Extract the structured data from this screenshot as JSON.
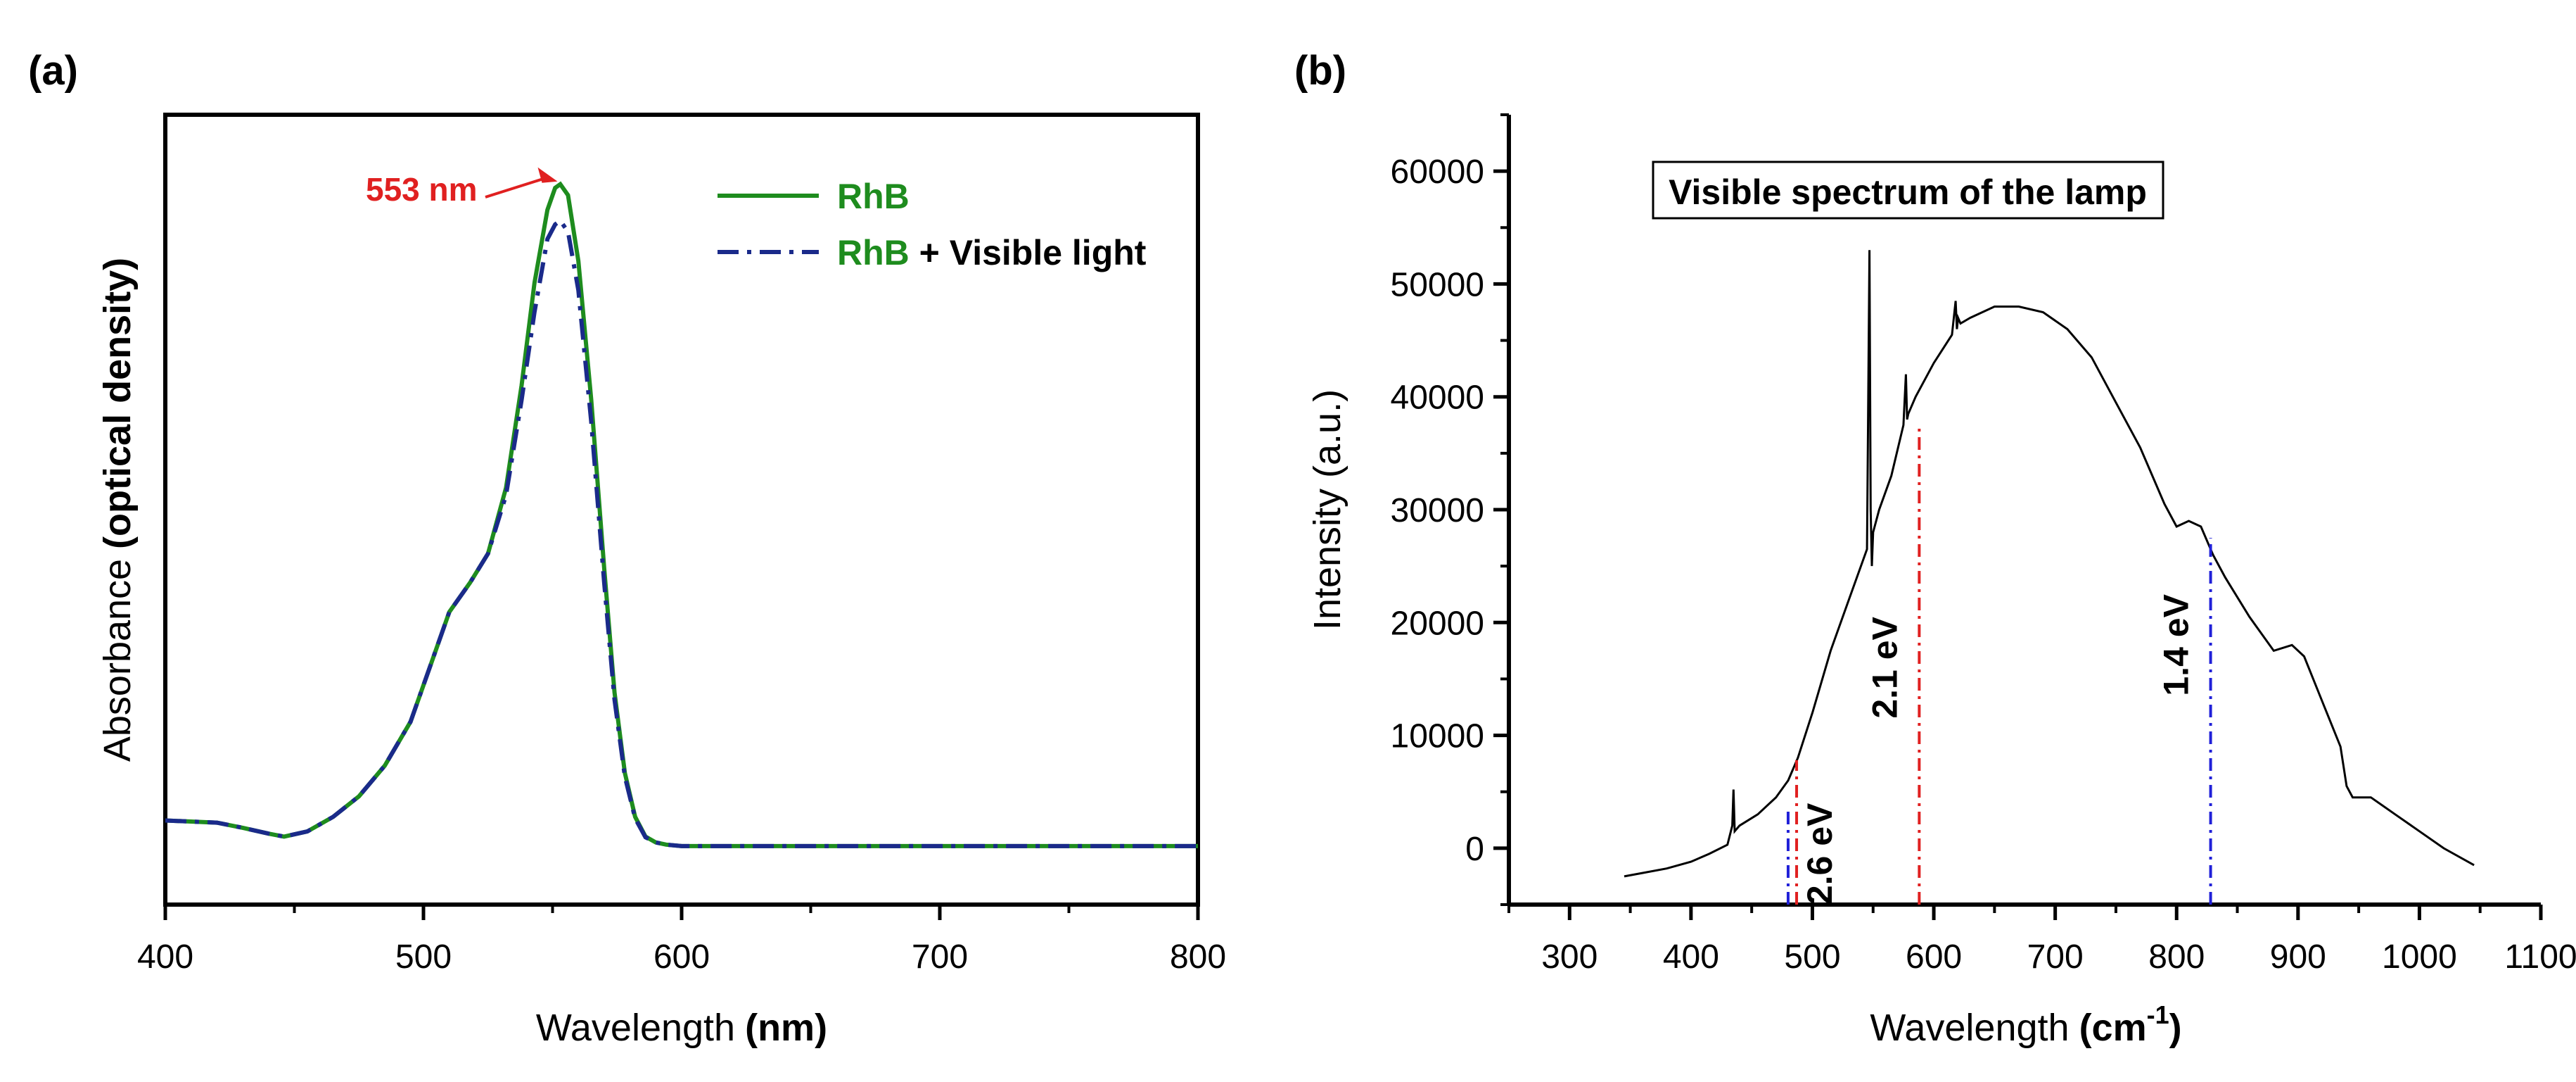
{
  "colors": {
    "green": "#1e8c1e",
    "navy": "#1a2a8a",
    "red": "#e02020",
    "blue": "#2020d8",
    "black": "#000000"
  },
  "chart_data": [
    {
      "type": "line",
      "panel_label": "(a)",
      "title": "",
      "xlabel": "Wavelength",
      "xlabel_bold": "(nm)",
      "ylabel": "Absorbance",
      "ylabel_bold": "(optical density)",
      "xlim": [
        400,
        800
      ],
      "ylim": [
        -0.08,
        1.0
      ],
      "xticks": [
        400,
        500,
        600,
        700,
        800
      ],
      "yticks_labeled": false,
      "legend_position": "top-right",
      "annotation": {
        "text": "553 nm",
        "x": 553,
        "y": 0.905
      },
      "series": [
        {
          "name": "RhB",
          "legend_label_bold": "RhB",
          "legend_label_rest": "",
          "style": "solid",
          "x": [
            400,
            420,
            430,
            440,
            446,
            455,
            465,
            475,
            485,
            495,
            503,
            510,
            518,
            525,
            532,
            538,
            543,
            548,
            551,
            553,
            556,
            560,
            565,
            570,
            574,
            578,
            582,
            586,
            590,
            594,
            600,
            610,
            630,
            650,
            700,
            750,
            800
          ],
          "y": [
            0.035,
            0.032,
            0.025,
            0.017,
            0.013,
            0.02,
            0.04,
            0.068,
            0.11,
            0.17,
            0.25,
            0.32,
            0.36,
            0.4,
            0.49,
            0.63,
            0.77,
            0.87,
            0.9,
            0.905,
            0.89,
            0.8,
            0.61,
            0.38,
            0.21,
            0.1,
            0.04,
            0.013,
            0.005,
            0.002,
            0.0,
            0.0,
            0.0,
            0.0,
            0.0,
            0.0,
            0.0
          ]
        },
        {
          "name": "RhB + Visible light",
          "legend_label_bold": "RhB",
          "legend_label_rest": " + Visible light",
          "style": "dash-dot",
          "x": [
            400,
            420,
            430,
            440,
            446,
            455,
            465,
            475,
            485,
            495,
            503,
            510,
            518,
            525,
            532,
            538,
            543,
            548,
            551,
            553,
            556,
            560,
            565,
            570,
            574,
            578,
            582,
            586,
            590,
            594,
            600,
            610,
            630,
            650,
            700,
            750,
            800
          ],
          "y": [
            0.035,
            0.032,
            0.025,
            0.017,
            0.013,
            0.02,
            0.04,
            0.068,
            0.11,
            0.17,
            0.25,
            0.32,
            0.36,
            0.4,
            0.48,
            0.61,
            0.73,
            0.83,
            0.85,
            0.855,
            0.84,
            0.76,
            0.58,
            0.36,
            0.2,
            0.095,
            0.038,
            0.012,
            0.005,
            0.002,
            0.0,
            0.0,
            0.0,
            0.0,
            0.0,
            0.0,
            0.0
          ]
        }
      ]
    },
    {
      "type": "line",
      "panel_label": "(b)",
      "title": "Visible spectrum of the lamp",
      "xlabel": "Wavelength",
      "xlabel_bold": "(cm",
      "xlabel_sup": "-1",
      "xlabel_end": ")",
      "ylabel": "Intensity (a.u.)",
      "xlim": [
        250,
        1100
      ],
      "ylim": [
        -5000,
        65000
      ],
      "xticks": [
        300,
        400,
        500,
        600,
        700,
        800,
        900,
        1000,
        1100
      ],
      "yticks": [
        0,
        10000,
        20000,
        30000,
        40000,
        50000,
        60000
      ],
      "series": [
        {
          "name": "lamp spectrum",
          "x": [
            345,
            360,
            380,
            400,
            415,
            430,
            434,
            435,
            436,
            440,
            455,
            470,
            480,
            488,
            500,
            515,
            530,
            545,
            546,
            547,
            548,
            549,
            550,
            555,
            565,
            575,
            577,
            578,
            579,
            585,
            600,
            615,
            618,
            619,
            620,
            622,
            630,
            650,
            670,
            690,
            710,
            730,
            750,
            770,
            790,
            800,
            810,
            820,
            830,
            840,
            860,
            880,
            895,
            905,
            920,
            935,
            940,
            945,
            960,
            980,
            1000,
            1020,
            1045
          ],
          "y": [
            -2500,
            -2200,
            -1800,
            -1200,
            -500,
            300,
            2000,
            5200,
            1500,
            2000,
            3000,
            4500,
            6000,
            8000,
            12000,
            17500,
            22000,
            26500,
            40000,
            53000,
            30000,
            25000,
            28000,
            30000,
            33000,
            37500,
            42000,
            38000,
            38500,
            40000,
            43000,
            45500,
            48500,
            46000,
            47000,
            46500,
            47000,
            48000,
            48000,
            47500,
            46000,
            43500,
            39500,
            35500,
            30500,
            28500,
            29000,
            28500,
            26000,
            24000,
            20500,
            17500,
            18000,
            17000,
            13000,
            9000,
            5500,
            4500,
            4500,
            3000,
            1500,
            0,
            -1500
          ]
        }
      ],
      "energy_markers": [
        {
          "label": "2.6 eV",
          "x": 480,
          "color_key": "blue",
          "y_top": 3500
        },
        {
          "label": "",
          "x": 487,
          "color_key": "red",
          "y_top": 7800
        },
        {
          "label": "2.1 eV",
          "x": 588,
          "color_key": "red",
          "y_top": 37500
        },
        {
          "label": "1.4 eV",
          "x": 828,
          "color_key": "blue",
          "y_top": 27500
        }
      ]
    }
  ]
}
